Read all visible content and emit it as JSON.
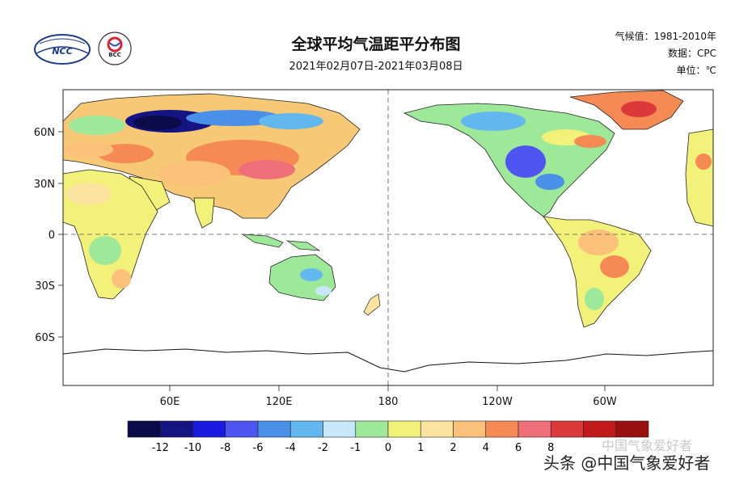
{
  "header": {
    "title": "全球平均气温距平分布图",
    "date_range": "2021年02月07日-2021年03月08日",
    "climate_baseline": "气候值：1981-2010年",
    "data_source": "数据：CPC",
    "unit": "单位：℃"
  },
  "logos": {
    "left": "NCC",
    "right": "BCC"
  },
  "map": {
    "lon_labels": [
      "60E",
      "120E",
      "180",
      "120W",
      "60W"
    ],
    "lat_labels": [
      "60N",
      "30N",
      "0",
      "30S",
      "60S"
    ],
    "reference_lines": [
      "equator",
      "dateline"
    ]
  },
  "colorbar": {
    "colors": [
      "#0b0b4a",
      "#141482",
      "#1a1ae0",
      "#4f55f0",
      "#4a8fe8",
      "#62b8ee",
      "#c6e8f8",
      "#9ee89a",
      "#f2f27a",
      "#fce3a0",
      "#fbc07a",
      "#f68a55",
      "#ee6f7a",
      "#dc3a3a",
      "#c21a1a",
      "#9a0f0f"
    ],
    "tick_labels": [
      "-12",
      "-10",
      "-8",
      "-6",
      "-4",
      "-2",
      "-1",
      "0",
      "1",
      "2",
      "4",
      "6",
      "8"
    ]
  },
  "watermark": {
    "faded": "中国气象爱好者",
    "main": "头条 @中国气象爱好者"
  }
}
